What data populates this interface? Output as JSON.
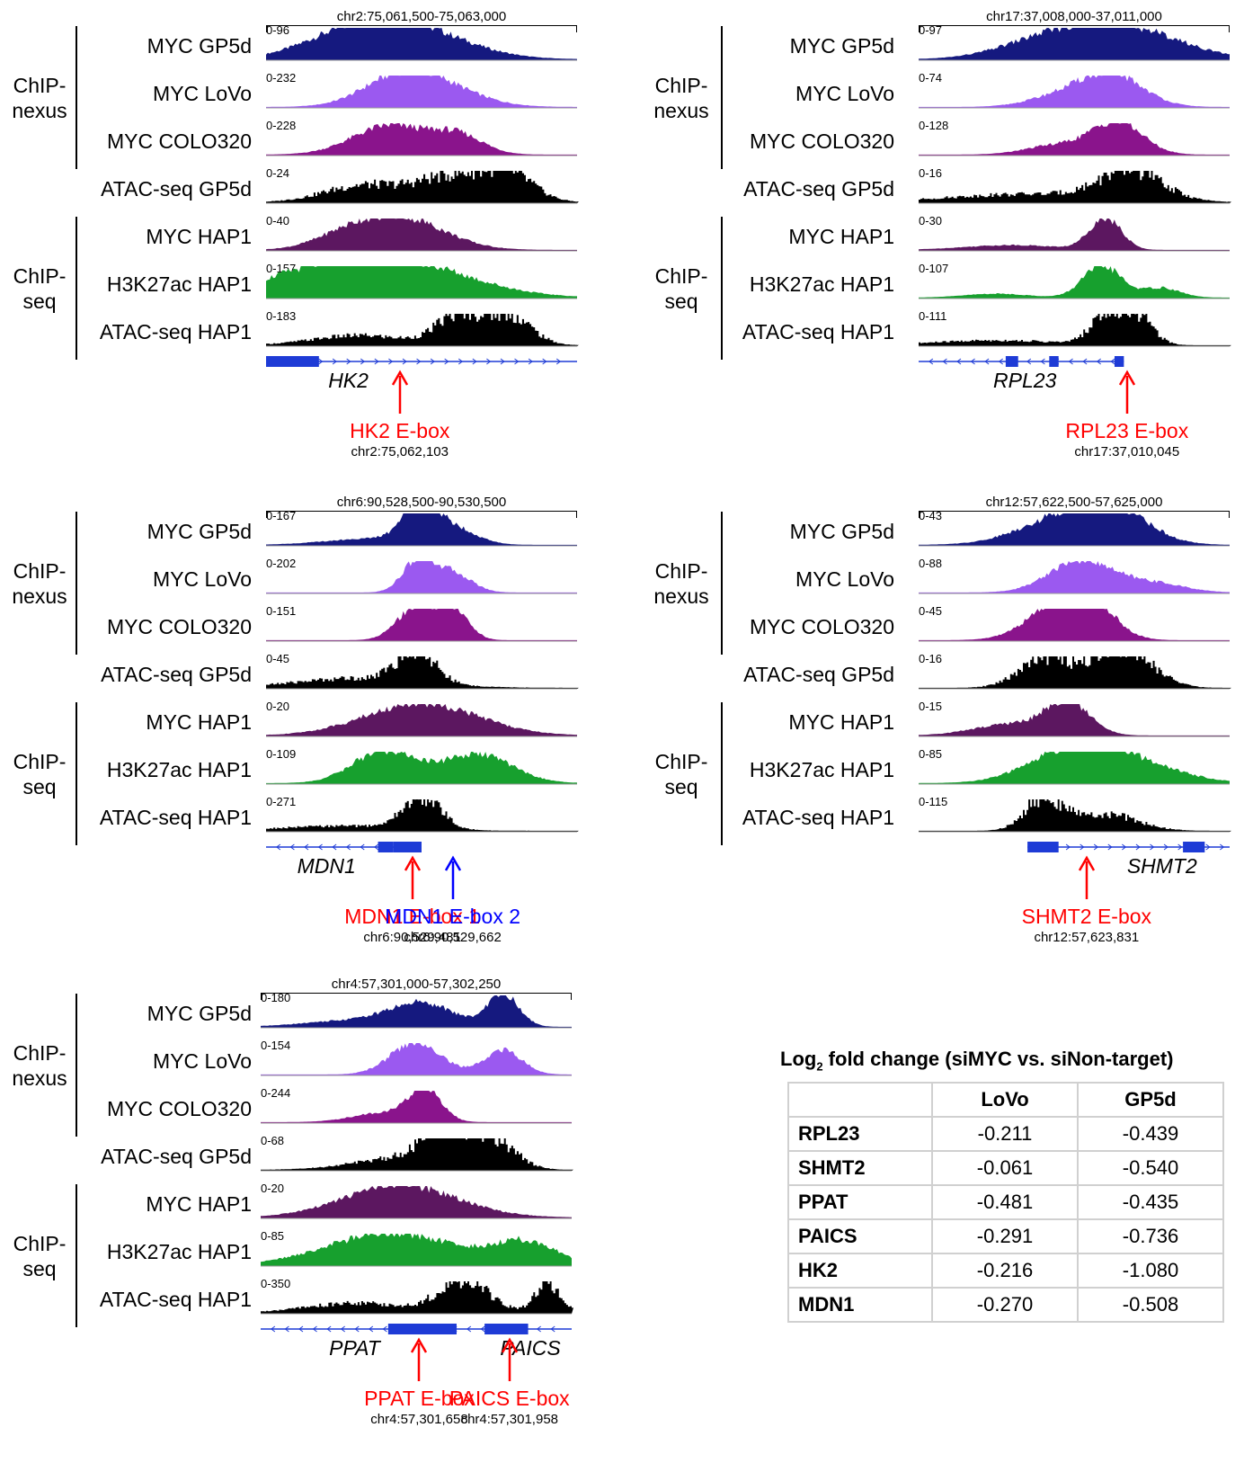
{
  "panels": [
    {
      "id": "hk2",
      "region": "chr2:75,061,500-75,063,000",
      "groups": [
        "ChIP-\nnexus",
        "ChIP-\nseq"
      ],
      "tracks": [
        {
          "label": "MYC GP5d",
          "range": "0-96",
          "color": "#15197f"
        },
        {
          "label": "MYC LoVo",
          "range": "0-232",
          "color": "#9b59f0"
        },
        {
          "label": "MYC COLO320",
          "range": "0-228",
          "color": "#8a148c"
        },
        {
          "label": "ATAC-seq GP5d",
          "range": "0-24",
          "color": "#000000"
        },
        {
          "label": "MYC HAP1",
          "range": "0-40",
          "color": "#5c1760"
        },
        {
          "label": "H3K27ac HAP1",
          "range": "0-157",
          "color": "#17a02e"
        },
        {
          "label": "ATAC-seq HAP1",
          "range": "0-183",
          "color": "#000000"
        }
      ],
      "genes": [
        "HK2"
      ],
      "eboxes": [
        {
          "label": "HK2 E-box",
          "coord": "chr2:75,062,103",
          "color": "#ff0000"
        }
      ]
    },
    {
      "id": "rpl23",
      "region": "chr17:37,008,000-37,011,000",
      "groups": [
        "ChIP-\nnexus",
        "ChIP-\nseq"
      ],
      "tracks": [
        {
          "label": "MYC GP5d",
          "range": "0-97",
          "color": "#15197f"
        },
        {
          "label": "MYC LoVo",
          "range": "0-74",
          "color": "#9b59f0"
        },
        {
          "label": "MYC COLO320",
          "range": "0-128",
          "color": "#8a148c"
        },
        {
          "label": "ATAC-seq GP5d",
          "range": "0-16",
          "color": "#000000"
        },
        {
          "label": "MYC HAP1",
          "range": "0-30",
          "color": "#5c1760"
        },
        {
          "label": "H3K27ac HAP1",
          "range": "0-107",
          "color": "#17a02e"
        },
        {
          "label": "ATAC-seq HAP1",
          "range": "0-111",
          "color": "#000000"
        }
      ],
      "genes": [
        "RPL23"
      ],
      "eboxes": [
        {
          "label": "RPL23 E-box",
          "coord": "chr17:37,010,045",
          "color": "#ff0000"
        }
      ]
    },
    {
      "id": "mdn1",
      "region": "chr6:90,528,500-90,530,500",
      "groups": [
        "ChIP-\nnexus",
        "ChIP-\nseq"
      ],
      "tracks": [
        {
          "label": "MYC GP5d",
          "range": "0-167",
          "color": "#15197f"
        },
        {
          "label": "MYC LoVo",
          "range": "0-202",
          "color": "#9b59f0"
        },
        {
          "label": "MYC COLO320",
          "range": "0-151",
          "color": "#8a148c"
        },
        {
          "label": "ATAC-seq GP5d",
          "range": "0-45",
          "color": "#000000"
        },
        {
          "label": "MYC HAP1",
          "range": "0-20",
          "color": "#5c1760"
        },
        {
          "label": "H3K27ac HAP1",
          "range": "0-109",
          "color": "#17a02e"
        },
        {
          "label": "ATAC-seq HAP1",
          "range": "0-271",
          "color": "#000000"
        }
      ],
      "genes": [
        "MDN1"
      ],
      "eboxes": [
        {
          "label": "MDN1 E-box 1",
          "coord": "chr6:90,529,481",
          "color": "#ff0000"
        },
        {
          "label": "MDN1 E-box 2",
          "coord": "chr6:90,529,662",
          "color": "#0000ff"
        }
      ]
    },
    {
      "id": "shmt2",
      "region": "chr12:57,622,500-57,625,000",
      "groups": [
        "ChIP-\nnexus",
        "ChIP-\nseq"
      ],
      "tracks": [
        {
          "label": "MYC GP5d",
          "range": "0-43",
          "color": "#15197f"
        },
        {
          "label": "MYC LoVo",
          "range": "0-88",
          "color": "#9b59f0"
        },
        {
          "label": "MYC COLO320",
          "range": "0-45",
          "color": "#8a148c"
        },
        {
          "label": "ATAC-seq GP5d",
          "range": "0-16",
          "color": "#000000"
        },
        {
          "label": "MYC HAP1",
          "range": "0-15",
          "color": "#5c1760"
        },
        {
          "label": "H3K27ac HAP1",
          "range": "0-85",
          "color": "#17a02e"
        },
        {
          "label": "ATAC-seq HAP1",
          "range": "0-115",
          "color": "#000000"
        }
      ],
      "genes": [
        "SHMT2"
      ],
      "eboxes": [
        {
          "label": "SHMT2 E-box",
          "coord": "chr12:57,623,831",
          "color": "#ff0000"
        }
      ]
    },
    {
      "id": "ppat",
      "region": "chr4:57,301,000-57,302,250",
      "groups": [
        "ChIP-\nnexus",
        "ChIP-\nseq"
      ],
      "tracks": [
        {
          "label": "MYC GP5d",
          "range": "0-180",
          "color": "#15197f"
        },
        {
          "label": "MYC LoVo",
          "range": "0-154",
          "color": "#9b59f0"
        },
        {
          "label": "MYC COLO320",
          "range": "0-244",
          "color": "#8a148c"
        },
        {
          "label": "ATAC-seq GP5d",
          "range": "0-68",
          "color": "#000000"
        },
        {
          "label": "MYC HAP1",
          "range": "0-20",
          "color": "#5c1760"
        },
        {
          "label": "H3K27ac HAP1",
          "range": "0-85",
          "color": "#17a02e"
        },
        {
          "label": "ATAC-seq HAP1",
          "range": "0-350",
          "color": "#000000"
        }
      ],
      "genes": [
        "PPAT",
        "PAICS"
      ],
      "eboxes": [
        {
          "label": "PPAT E-box",
          "coord": "chr4:57,301,658",
          "color": "#ff0000"
        },
        {
          "label": "PAICS E-box",
          "coord": "chr4:57,301,958",
          "color": "#ff0000"
        }
      ]
    }
  ],
  "table": {
    "title_prefix": "Log",
    "title_sub": "2",
    "title_suffix": " fold change (siMYC vs. siNon-target)",
    "columns": [
      "",
      "LoVo",
      "GP5d"
    ],
    "rows": [
      {
        "gene": "RPL23",
        "lovo": "-0.211",
        "gp5d": "-0.439"
      },
      {
        "gene": "SHMT2",
        "lovo": "-0.061",
        "gp5d": "-0.540"
      },
      {
        "gene": "PPAT",
        "lovo": "-0.481",
        "gp5d": "-0.435"
      },
      {
        "gene": "PAICS",
        "lovo": "-0.291",
        "gp5d": "-0.736"
      },
      {
        "gene": "HK2",
        "lovo": "-0.216",
        "gp5d": "-1.080"
      },
      {
        "gene": "MDN1",
        "lovo": "-0.270",
        "gp5d": "-0.508"
      }
    ]
  }
}
